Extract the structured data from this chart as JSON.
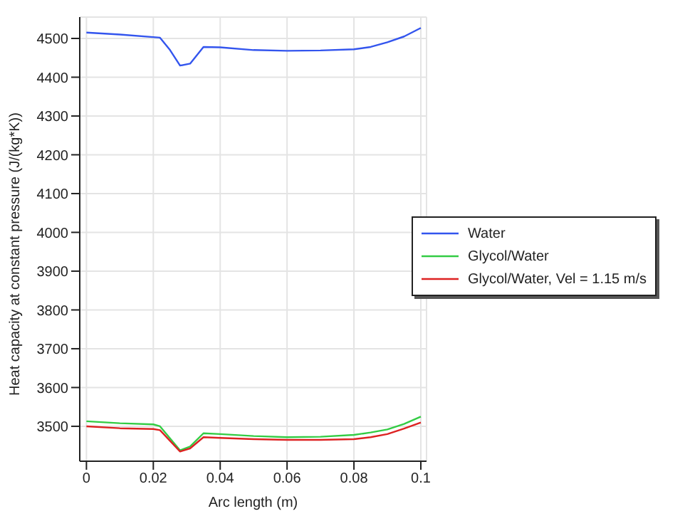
{
  "chart_data": {
    "type": "line",
    "xlabel": "Arc length (m)",
    "ylabel": "Heat capacity at constant pressure (J/(kg*K))",
    "xlim": [
      -0.002,
      0.1017
    ],
    "xticks": [
      0,
      0.02,
      0.04,
      0.06,
      0.08,
      0.1
    ],
    "ylim": [
      3410,
      4555
    ],
    "yticks": [
      3500,
      3600,
      3700,
      3800,
      3900,
      4000,
      4100,
      4200,
      4300,
      4400,
      4500
    ],
    "grid": true,
    "legend": "right",
    "marker": "none",
    "line_style": "solid",
    "series": [
      {
        "name": "Water",
        "color": "#3355ee",
        "x": [
          0,
          0.01,
          0.022,
          0.025,
          0.028,
          0.031,
          0.035,
          0.04,
          0.05,
          0.06,
          0.07,
          0.08,
          0.085,
          0.09,
          0.095,
          0.1
        ],
        "values": [
          4515,
          4510,
          4502,
          4470,
          4430,
          4435,
          4478,
          4477,
          4470,
          4468,
          4469,
          4472,
          4478,
          4490,
          4505,
          4527
        ]
      },
      {
        "name": "Glycol/Water",
        "color": "#33cc44",
        "x": [
          0,
          0.01,
          0.02,
          0.022,
          0.028,
          0.031,
          0.035,
          0.04,
          0.05,
          0.06,
          0.07,
          0.08,
          0.085,
          0.09,
          0.095,
          0.1
        ],
        "values": [
          3513,
          3508,
          3505,
          3500,
          3438,
          3448,
          3482,
          3480,
          3475,
          3472,
          3473,
          3478,
          3484,
          3492,
          3506,
          3525
        ]
      },
      {
        "name": "Glycol/Water, Vel = 1.15 m/s",
        "color": "#dd2222",
        "x": [
          0,
          0.01,
          0.02,
          0.022,
          0.028,
          0.031,
          0.035,
          0.04,
          0.05,
          0.06,
          0.07,
          0.08,
          0.085,
          0.09,
          0.095,
          0.1
        ],
        "values": [
          3500,
          3495,
          3493,
          3490,
          3435,
          3443,
          3472,
          3470,
          3467,
          3465,
          3465,
          3467,
          3472,
          3480,
          3494,
          3510
        ]
      }
    ]
  }
}
